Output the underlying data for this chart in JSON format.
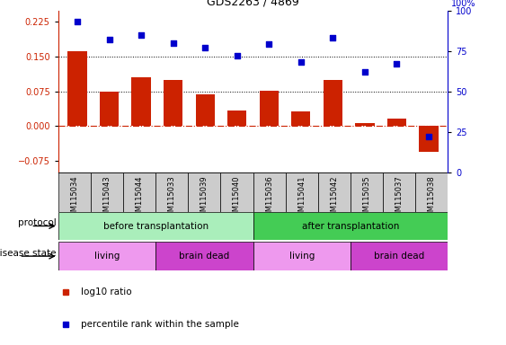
{
  "title": "GDS2263 / 4869",
  "samples": [
    "GSM115034",
    "GSM115043",
    "GSM115044",
    "GSM115033",
    "GSM115039",
    "GSM115040",
    "GSM115036",
    "GSM115041",
    "GSM115042",
    "GSM115035",
    "GSM115037",
    "GSM115038"
  ],
  "log10_ratio": [
    0.162,
    0.075,
    0.105,
    0.1,
    0.068,
    0.033,
    0.077,
    0.032,
    0.1,
    0.007,
    0.017,
    -0.055
  ],
  "percentile_rank": [
    93,
    82,
    85,
    80,
    77,
    72,
    79,
    68,
    83,
    62,
    67,
    22
  ],
  "ylim_left": [
    -0.1,
    0.25
  ],
  "ylim_right": [
    0,
    100
  ],
  "yticks_left": [
    -0.075,
    0,
    0.075,
    0.15,
    0.225
  ],
  "yticks_right": [
    0,
    25,
    50,
    75,
    100
  ],
  "hlines": [
    0.075,
    0.15
  ],
  "bar_color": "#cc2200",
  "dot_color": "#0000cc",
  "zero_line_color": "#cc2200",
  "protocol_groups": [
    {
      "label": "before transplantation",
      "start": 0,
      "end": 6,
      "color": "#aaeebb"
    },
    {
      "label": "after transplantation",
      "start": 6,
      "end": 12,
      "color": "#44cc55"
    }
  ],
  "disease_groups": [
    {
      "label": "living",
      "start": 0,
      "end": 3,
      "color": "#ee99ee"
    },
    {
      "label": "brain dead",
      "start": 3,
      "end": 6,
      "color": "#cc44cc"
    },
    {
      "label": "living",
      "start": 6,
      "end": 9,
      "color": "#ee99ee"
    },
    {
      "label": "brain dead",
      "start": 9,
      "end": 12,
      "color": "#cc44cc"
    }
  ],
  "legend_items": [
    {
      "label": "log10 ratio",
      "color": "#cc2200"
    },
    {
      "label": "percentile rank within the sample",
      "color": "#0000cc"
    }
  ],
  "xtick_bg": "#cccccc",
  "right_axis_label": "100%"
}
